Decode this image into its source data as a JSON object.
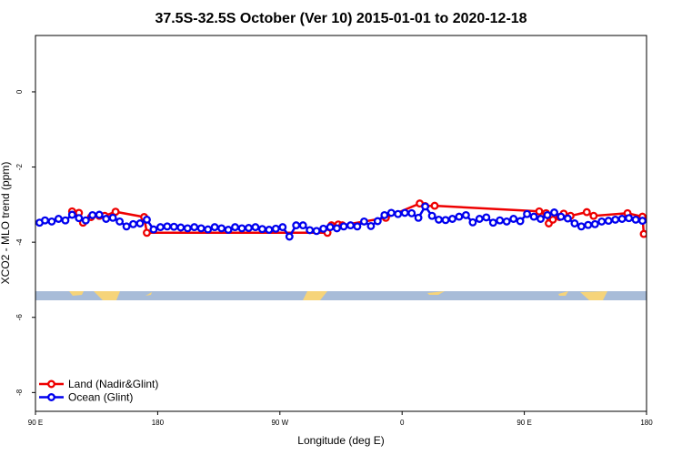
{
  "chart_data": {
    "type": "scatter",
    "title": "37.5S-32.5S October (Ver 10)   2015-01-01 to 2020-12-18",
    "xlabel": "Longitude (deg E)",
    "ylabel": "XCO2 - MLO trend (ppm)",
    "xlim": [
      90,
      540
    ],
    "ylim": [
      -8.5,
      1.5
    ],
    "x_ticks": [
      {
        "value": 90,
        "label": "90 E"
      },
      {
        "value": 180,
        "label": "180"
      },
      {
        "value": 270,
        "label": "90 W"
      },
      {
        "value": 360,
        "label": "0"
      },
      {
        "value": 450,
        "label": "90 E"
      },
      {
        "value": 540,
        "label": "180"
      }
    ],
    "y_ticks": [
      {
        "value": 0,
        "label": "0"
      },
      {
        "value": -2,
        "label": "-2"
      },
      {
        "value": -4,
        "label": "-4"
      },
      {
        "value": -6,
        "label": "-6"
      },
      {
        "value": -8,
        "label": "-8"
      }
    ],
    "grid": false,
    "legend_position": "bottom-left",
    "background_map": {
      "latitude_band": "37.5S-32.5S",
      "ocean_color": "#a8bcd8",
      "land_color": "#f6d47a"
    },
    "series": [
      {
        "name": "Land (Nadir&Glint)",
        "color": "#ee0000",
        "x": [
          117,
          122,
          125,
          131,
          137,
          141,
          149,
          170,
          172,
          305,
          308,
          313,
          316,
          348,
          373,
          377,
          384,
          461,
          466,
          468,
          471,
          476,
          479,
          484,
          496,
          501,
          526,
          537,
          538
        ],
        "y": [
          -3.18,
          -3.22,
          -3.48,
          -3.33,
          -3.3,
          -3.3,
          -3.19,
          -3.33,
          -3.75,
          -3.75,
          -3.55,
          -3.53,
          -3.55,
          -3.35,
          -2.97,
          -3.04,
          -3.03,
          -3.18,
          -3.23,
          -3.5,
          -3.4,
          -3.33,
          -3.24,
          -3.3,
          -3.2,
          -3.3,
          -3.23,
          -3.32,
          -3.78
        ]
      },
      {
        "name": "Ocean (Glint)",
        "color": "#0000ee",
        "x": [
          93,
          97,
          102,
          107,
          112,
          117,
          122,
          127,
          132,
          137,
          142,
          147,
          152,
          157,
          162,
          167,
          172,
          177,
          182,
          187,
          192,
          197,
          202,
          207,
          212,
          217,
          222,
          227,
          232,
          237,
          242,
          247,
          252,
          257,
          262,
          267,
          272,
          277,
          282,
          287,
          292,
          297,
          302,
          307,
          312,
          317,
          322,
          327,
          332,
          337,
          342,
          347,
          352,
          357,
          362,
          367,
          372,
          377,
          382,
          387,
          392,
          397,
          402,
          407,
          412,
          417,
          422,
          427,
          432,
          437,
          442,
          447,
          452,
          457,
          462,
          467,
          472,
          477,
          482,
          487,
          492,
          497,
          502,
          507,
          512,
          517,
          522,
          527,
          532,
          537
        ],
        "y": [
          -3.48,
          -3.42,
          -3.45,
          -3.38,
          -3.42,
          -3.27,
          -3.36,
          -3.42,
          -3.28,
          -3.27,
          -3.38,
          -3.35,
          -3.45,
          -3.58,
          -3.52,
          -3.5,
          -3.4,
          -3.66,
          -3.6,
          -3.58,
          -3.59,
          -3.61,
          -3.63,
          -3.6,
          -3.63,
          -3.66,
          -3.6,
          -3.63,
          -3.67,
          -3.6,
          -3.63,
          -3.62,
          -3.6,
          -3.65,
          -3.67,
          -3.64,
          -3.6,
          -3.85,
          -3.55,
          -3.55,
          -3.68,
          -3.7,
          -3.64,
          -3.6,
          -3.63,
          -3.58,
          -3.55,
          -3.58,
          -3.45,
          -3.57,
          -3.44,
          -3.28,
          -3.22,
          -3.25,
          -3.22,
          -3.23,
          -3.35,
          -3.05,
          -3.3,
          -3.4,
          -3.41,
          -3.38,
          -3.32,
          -3.28,
          -3.47,
          -3.38,
          -3.34,
          -3.48,
          -3.42,
          -3.45,
          -3.38,
          -3.44,
          -3.25,
          -3.32,
          -3.38,
          -3.28,
          -3.21,
          -3.32,
          -3.37,
          -3.5,
          -3.58,
          -3.54,
          -3.52,
          -3.45,
          -3.43,
          -3.4,
          -3.38,
          -3.36,
          -3.4,
          -3.43
        ]
      }
    ]
  }
}
